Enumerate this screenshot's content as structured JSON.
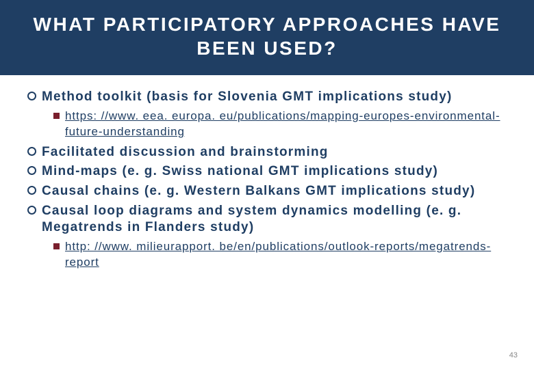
{
  "title_bar": {
    "background_color": "#1f3e63",
    "text_color": "#ffffff",
    "heading": "WHAT PARTICIPATORY APPROACHES HAVE BEEN USED?",
    "heading_fontsize": 28,
    "heading_letterspacing": 2.5
  },
  "content_color": "#1f3e63",
  "circle_bullet": {
    "border_color": "#1f3e63",
    "size": 13
  },
  "square_bullet": {
    "fill_color": "#7a1f2d",
    "size": 9
  },
  "items": [
    {
      "text": "Method toolkit (basis for Slovenia GMT implications study)",
      "subs": [
        {
          "text": "https: //www. eea. europa. eu/publications/mapping-europes-environmental-future-understanding"
        }
      ]
    },
    {
      "text": "Facilitated discussion and brainstorming",
      "subs": []
    },
    {
      "text": "Mind-maps (e. g. Swiss national GMT implications study)",
      "subs": []
    },
    {
      "text": "Causal chains (e. g. Western Balkans GMT implications study)",
      "subs": []
    },
    {
      "text": "Causal loop diagrams and system dynamics modelling (e. g. Megatrends in Flanders study)",
      "subs": [
        {
          "text": "http: //www. milieurapport. be/en/publications/outlook-reports/megatrends-report"
        }
      ]
    }
  ],
  "slide_number": "43",
  "background_color": "#ffffff"
}
